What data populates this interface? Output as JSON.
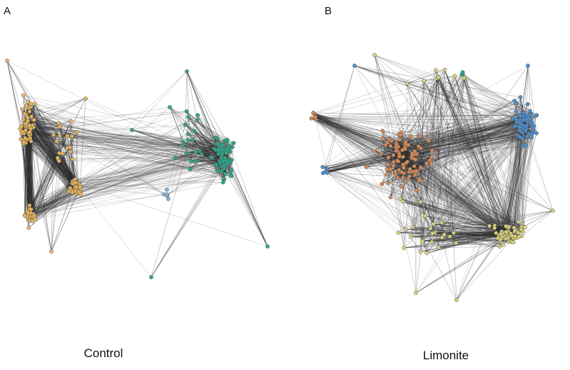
{
  "panels": [
    {
      "letter": "A",
      "caption": "Control",
      "edge_color": "#2a2a2a",
      "node_stroke": "#555555",
      "clusters": [
        {
          "color": "#E8B55A",
          "share": 0.52
        },
        {
          "color": "#2DA889",
          "share": 0.45
        },
        {
          "color": "#7FB6E0",
          "share": 0.03
        }
      ]
    },
    {
      "letter": "B",
      "caption": "Limonite",
      "edge_color": "#2a2a2a",
      "node_stroke": "#555555",
      "clusters": [
        {
          "color": "#D98A58",
          "share": 0.4
        },
        {
          "color": "#4A90D0",
          "share": 0.28
        },
        {
          "color": "#D9D37A",
          "share": 0.29
        },
        {
          "color": "#2DA889",
          "share": 0.03
        }
      ]
    }
  ]
}
